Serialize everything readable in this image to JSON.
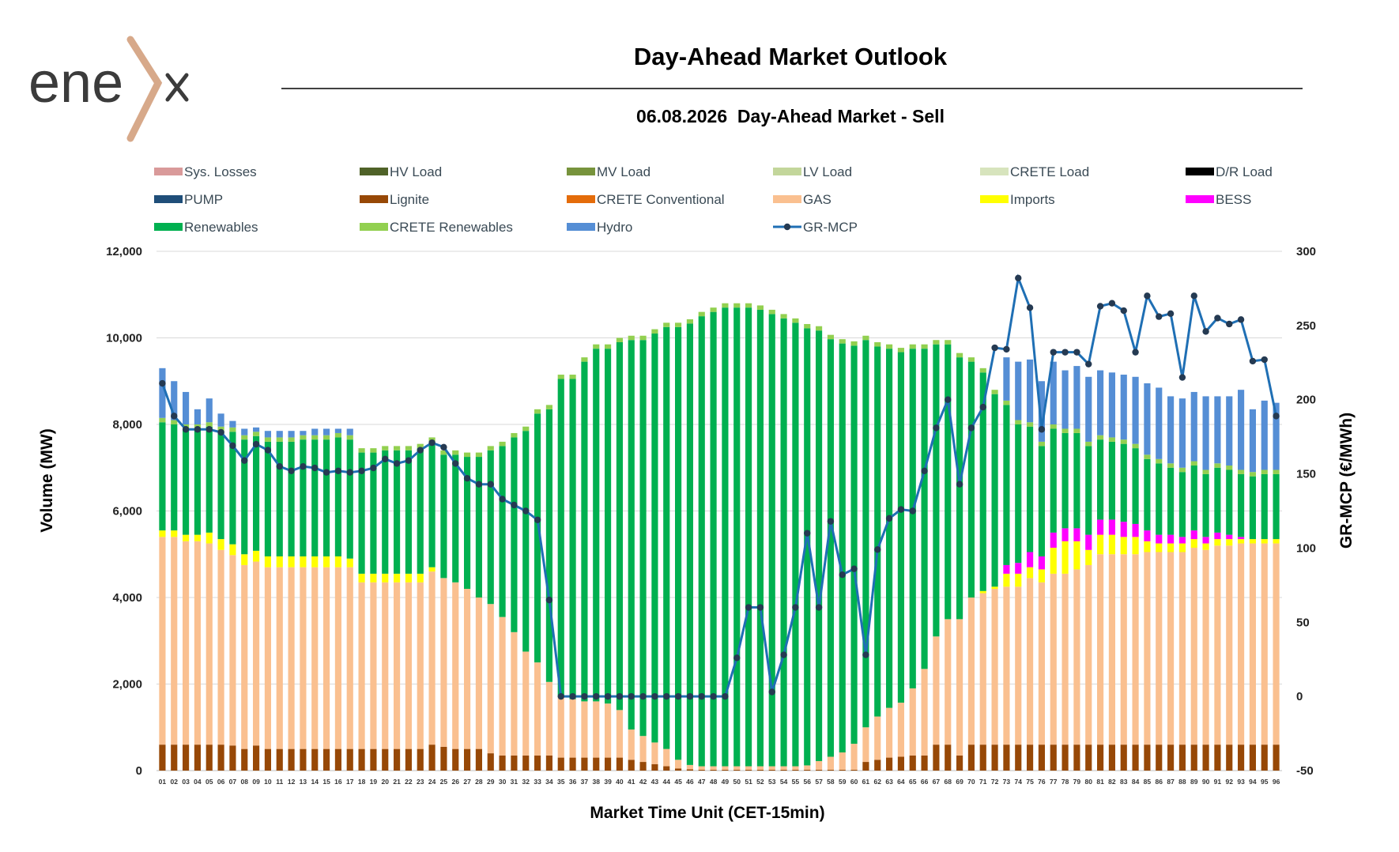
{
  "brand": {
    "logo_text": "enex"
  },
  "header": {
    "title": "Day-Ahead Market Outlook",
    "subtitle": "06.08.2026  Day-Ahead Market - Sell"
  },
  "chart_data": {
    "type": "bar",
    "stacked": true,
    "xlabel": "Market Time Unit (CET-15min)",
    "ylabel_left": "Volume (MW)",
    "ylabel_right": "GR-MCP (€/MWh)",
    "ylim_left": [
      0,
      12000
    ],
    "ylim_right": [
      -50,
      300
    ],
    "yticks_left": [
      "0",
      "2,000",
      "4,000",
      "6,000",
      "8,000",
      "10,000",
      "12,000"
    ],
    "yticks_right": [
      "-50",
      "0",
      "50",
      "100",
      "150",
      "200",
      "250",
      "300"
    ],
    "grid": true,
    "legend_position": "top",
    "categories": [
      "01",
      "02",
      "03",
      "04",
      "05",
      "06",
      "07",
      "08",
      "09",
      "10",
      "11",
      "12",
      "13",
      "14",
      "15",
      "16",
      "17",
      "18",
      "19",
      "20",
      "21",
      "22",
      "23",
      "24",
      "25",
      "26",
      "27",
      "28",
      "29",
      "30",
      "31",
      "32",
      "33",
      "34",
      "35",
      "36",
      "37",
      "38",
      "39",
      "40",
      "41",
      "42",
      "43",
      "44",
      "45",
      "46",
      "47",
      "48",
      "49",
      "50",
      "51",
      "52",
      "53",
      "54",
      "55",
      "56",
      "57",
      "58",
      "59",
      "60",
      "61",
      "62",
      "63",
      "64",
      "65",
      "66",
      "67",
      "68",
      "69",
      "70",
      "71",
      "72",
      "73",
      "74",
      "75",
      "76",
      "77",
      "78",
      "79",
      "80",
      "81",
      "82",
      "83",
      "84",
      "85",
      "86",
      "87",
      "88",
      "89",
      "90",
      "91",
      "92",
      "93",
      "94",
      "95",
      "96"
    ],
    "legend": [
      {
        "name": "Sys. Losses",
        "color": "#d99a9a",
        "kind": "bar"
      },
      {
        "name": "HV Load",
        "color": "#4f6228",
        "kind": "bar"
      },
      {
        "name": "MV Load",
        "color": "#77933c",
        "kind": "bar"
      },
      {
        "name": "LV Load",
        "color": "#c3d69b",
        "kind": "bar"
      },
      {
        "name": "CRETE Load",
        "color": "#d7e4bd",
        "kind": "bar"
      },
      {
        "name": "D/R Load",
        "color": "#000000",
        "kind": "bar"
      },
      {
        "name": "PUMP",
        "color": "#1f4e79",
        "kind": "bar"
      },
      {
        "name": "Lignite",
        "color": "#974806",
        "kind": "bar"
      },
      {
        "name": "CRETE Conventional",
        "color": "#e46c0a",
        "kind": "bar"
      },
      {
        "name": "GAS",
        "color": "#fac090",
        "kind": "bar"
      },
      {
        "name": "Imports",
        "color": "#ffff00",
        "kind": "bar"
      },
      {
        "name": "BESS",
        "color": "#ff00ff",
        "kind": "bar"
      },
      {
        "name": "Renewables",
        "color": "#00b050",
        "kind": "bar"
      },
      {
        "name": "CRETE Renewables",
        "color": "#92d050",
        "kind": "bar"
      },
      {
        "name": "Hydro",
        "color": "#558ed5",
        "kind": "bar"
      },
      {
        "name": "GR-MCP",
        "color": "#1f6fb4",
        "kind": "line"
      }
    ],
    "series": [
      {
        "name": "Lignite",
        "color": "#974806",
        "values": [
          600,
          600,
          600,
          600,
          600,
          600,
          580,
          500,
          580,
          500,
          500,
          500,
          500,
          500,
          500,
          500,
          500,
          500,
          500,
          500,
          500,
          500,
          500,
          600,
          550,
          500,
          500,
          500,
          400,
          350,
          350,
          350,
          350,
          350,
          300,
          300,
          300,
          300,
          300,
          300,
          250,
          200,
          150,
          100,
          50,
          30,
          20,
          20,
          20,
          20,
          20,
          20,
          20,
          20,
          20,
          20,
          20,
          20,
          20,
          20,
          200,
          250,
          300,
          320,
          350,
          350,
          600,
          600,
          350,
          600,
          600,
          600,
          600,
          600,
          600,
          600,
          600,
          600,
          600,
          600,
          600,
          600,
          600,
          600,
          600,
          600,
          600,
          600,
          600,
          600,
          600,
          600,
          600,
          600,
          600,
          600
        ]
      },
      {
        "name": "GAS",
        "color": "#fac090",
        "values": [
          4800,
          4800,
          4700,
          4700,
          4650,
          4500,
          4400,
          4250,
          4250,
          4200,
          4200,
          4200,
          4200,
          4200,
          4200,
          4200,
          4200,
          3850,
          3850,
          3850,
          3850,
          3850,
          3850,
          4000,
          3900,
          3850,
          3700,
          3500,
          3450,
          3200,
          2850,
          2400,
          2150,
          1700,
          1400,
          1350,
          1300,
          1300,
          1250,
          1100,
          700,
          600,
          500,
          400,
          200,
          100,
          80,
          80,
          80,
          80,
          80,
          80,
          80,
          80,
          80,
          100,
          200,
          300,
          400,
          600,
          800,
          1000,
          1150,
          1250,
          1550,
          2000,
          2500,
          2900,
          3150,
          3400,
          3500,
          3600,
          3650,
          3650,
          3850,
          3750,
          3950,
          3950,
          4050,
          4150,
          4400,
          4400,
          4400,
          4400,
          4450,
          4450,
          4450,
          4450,
          4550,
          4500,
          4600,
          4600,
          4650,
          4650,
          4650,
          4650
        ]
      },
      {
        "name": "Imports",
        "color": "#ffff00",
        "values": [
          150,
          150,
          150,
          150,
          250,
          250,
          250,
          250,
          250,
          250,
          250,
          250,
          250,
          250,
          250,
          250,
          200,
          200,
          200,
          200,
          200,
          200,
          200,
          100,
          0,
          0,
          0,
          0,
          0,
          0,
          0,
          0,
          0,
          0,
          0,
          0,
          0,
          0,
          0,
          0,
          0,
          0,
          0,
          0,
          0,
          0,
          0,
          0,
          0,
          0,
          0,
          0,
          0,
          0,
          0,
          0,
          0,
          0,
          0,
          0,
          0,
          0,
          0,
          0,
          0,
          0,
          0,
          0,
          0,
          0,
          50,
          50,
          300,
          300,
          250,
          300,
          600,
          750,
          650,
          350,
          450,
          450,
          400,
          400,
          250,
          200,
          200,
          200,
          200,
          150,
          150,
          150,
          100,
          100,
          100,
          100
        ]
      },
      {
        "name": "BESS",
        "color": "#ff00ff",
        "values": [
          0,
          0,
          0,
          0,
          0,
          0,
          0,
          0,
          0,
          0,
          0,
          0,
          0,
          0,
          0,
          0,
          0,
          0,
          0,
          0,
          0,
          0,
          0,
          0,
          0,
          0,
          0,
          0,
          0,
          0,
          0,
          0,
          0,
          0,
          0,
          0,
          0,
          0,
          0,
          0,
          0,
          0,
          0,
          0,
          0,
          0,
          0,
          0,
          0,
          0,
          0,
          0,
          0,
          0,
          0,
          0,
          0,
          0,
          0,
          0,
          0,
          0,
          0,
          0,
          0,
          0,
          0,
          0,
          0,
          0,
          0,
          0,
          200,
          250,
          350,
          300,
          350,
          300,
          300,
          350,
          350,
          350,
          350,
          300,
          250,
          200,
          200,
          150,
          200,
          150,
          150,
          100,
          50,
          0,
          0,
          0
        ]
      },
      {
        "name": "Renewables",
        "color": "#00b050",
        "values": [
          2500,
          2450,
          2450,
          2450,
          2450,
          2500,
          2600,
          2650,
          2650,
          2650,
          2650,
          2650,
          2700,
          2700,
          2700,
          2750,
          2750,
          2800,
          2800,
          2850,
          2850,
          2850,
          2900,
          2900,
          2850,
          2950,
          3050,
          3250,
          3550,
          3950,
          4500,
          5100,
          5750,
          6300,
          7350,
          7400,
          7850,
          8150,
          8200,
          8500,
          9000,
          9150,
          9450,
          9750,
          10000,
          10200,
          10400,
          10500,
          10600,
          10600,
          10600,
          10550,
          10450,
          10350,
          10250,
          10100,
          9950,
          9650,
          9450,
          9200,
          8950,
          8550,
          8300,
          8100,
          7850,
          7400,
          6750,
          6350,
          6050,
          5450,
          5050,
          4450,
          3700,
          3200,
          2900,
          2550,
          2400,
          2200,
          2200,
          2050,
          1850,
          1800,
          1800,
          1750,
          1650,
          1650,
          1550,
          1500,
          1500,
          1450,
          1500,
          1500,
          1450,
          1450,
          1500,
          1500
        ]
      },
      {
        "name": "CRETE Renewables",
        "color": "#92d050",
        "values": [
          100,
          100,
          100,
          100,
          100,
          100,
          100,
          100,
          100,
          100,
          100,
          100,
          100,
          100,
          100,
          100,
          100,
          100,
          100,
          100,
          100,
          100,
          100,
          100,
          100,
          100,
          100,
          100,
          100,
          100,
          100,
          100,
          100,
          100,
          100,
          100,
          100,
          100,
          100,
          100,
          100,
          100,
          100,
          100,
          100,
          100,
          100,
          100,
          100,
          100,
          100,
          100,
          100,
          100,
          100,
          100,
          100,
          100,
          100,
          100,
          100,
          100,
          100,
          100,
          100,
          100,
          100,
          100,
          100,
          100,
          100,
          100,
          100,
          100,
          100,
          100,
          100,
          100,
          100,
          100,
          100,
          100,
          100,
          100,
          100,
          100,
          100,
          100,
          100,
          100,
          100,
          100,
          100,
          100,
          100,
          100
        ]
      },
      {
        "name": "Hydro",
        "color": "#558ed5",
        "values": [
          1150,
          900,
          750,
          350,
          550,
          300,
          150,
          150,
          100,
          150,
          150,
          150,
          100,
          150,
          150,
          100,
          150,
          0,
          0,
          0,
          0,
          0,
          0,
          0,
          0,
          0,
          0,
          0,
          0,
          0,
          0,
          0,
          0,
          0,
          0,
          0,
          0,
          0,
          0,
          0,
          0,
          0,
          0,
          0,
          0,
          0,
          0,
          0,
          0,
          0,
          0,
          0,
          0,
          0,
          0,
          0,
          0,
          0,
          0,
          0,
          0,
          0,
          0,
          0,
          0,
          0,
          0,
          0,
          0,
          0,
          0,
          0,
          1000,
          1350,
          1450,
          1400,
          1450,
          1350,
          1450,
          1500,
          1500,
          1500,
          1500,
          1550,
          1650,
          1650,
          1550,
          1600,
          1600,
          1700,
          1550,
          1600,
          1850,
          1450,
          1600,
          1550
        ]
      }
    ],
    "line_series": {
      "name": "GR-MCP",
      "color": "#1f6fb4",
      "values": [
        211,
        189,
        180,
        180,
        180,
        178,
        169,
        159,
        170,
        166,
        155,
        152,
        155,
        154,
        151,
        152,
        151,
        152,
        154,
        160,
        157,
        159,
        166,
        171,
        168,
        157,
        147,
        143,
        143,
        133,
        129,
        125,
        119,
        65,
        0,
        0,
        0,
        0,
        0,
        0,
        0,
        0,
        0,
        0,
        0,
        0,
        0,
        0,
        0,
        26,
        60,
        60,
        3,
        28,
        60,
        110,
        60,
        118,
        82,
        86,
        28,
        99,
        120,
        126,
        125,
        152,
        181,
        200,
        143,
        181,
        195,
        235,
        234,
        282,
        262,
        180,
        232,
        232,
        232,
        224,
        263,
        265,
        260,
        232,
        270,
        256,
        258,
        215,
        270,
        246,
        255,
        251,
        254,
        226,
        227,
        189
      ]
    }
  }
}
